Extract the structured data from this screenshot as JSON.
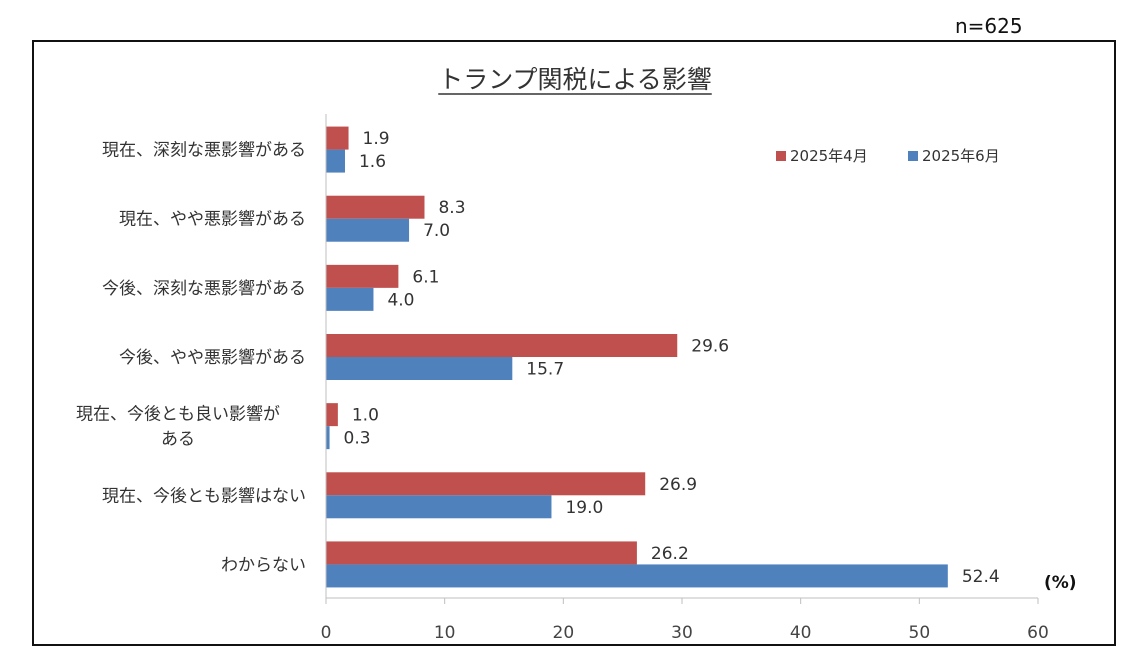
{
  "sample_size": "n=625",
  "chart_data": {
    "type": "bar",
    "orientation": "horizontal",
    "title": "トランプ関税による影響",
    "categories": [
      "現在、深刻な悪影響がある",
      "現在、やや悪影響がある",
      "今後、深刻な悪影響がある",
      "今後、やや悪影響がある",
      "現在、今後とも良い影響がある",
      "現在、今後とも影響はない",
      "わからない"
    ],
    "series": [
      {
        "name": "2025年4月",
        "color": "#c0504d",
        "values": [
          1.9,
          8.3,
          6.1,
          29.6,
          1.0,
          26.9,
          26.2
        ]
      },
      {
        "name": "2025年6月",
        "color": "#4f81bd",
        "values": [
          1.6,
          7.0,
          4.0,
          15.7,
          0.3,
          19.0,
          52.4
        ]
      }
    ],
    "xlim": [
      0,
      60
    ],
    "xticks": [
      0,
      10,
      20,
      30,
      40,
      50,
      60
    ],
    "unit_label": "(%)",
    "legend_position": "top-right",
    "grid": false
  }
}
